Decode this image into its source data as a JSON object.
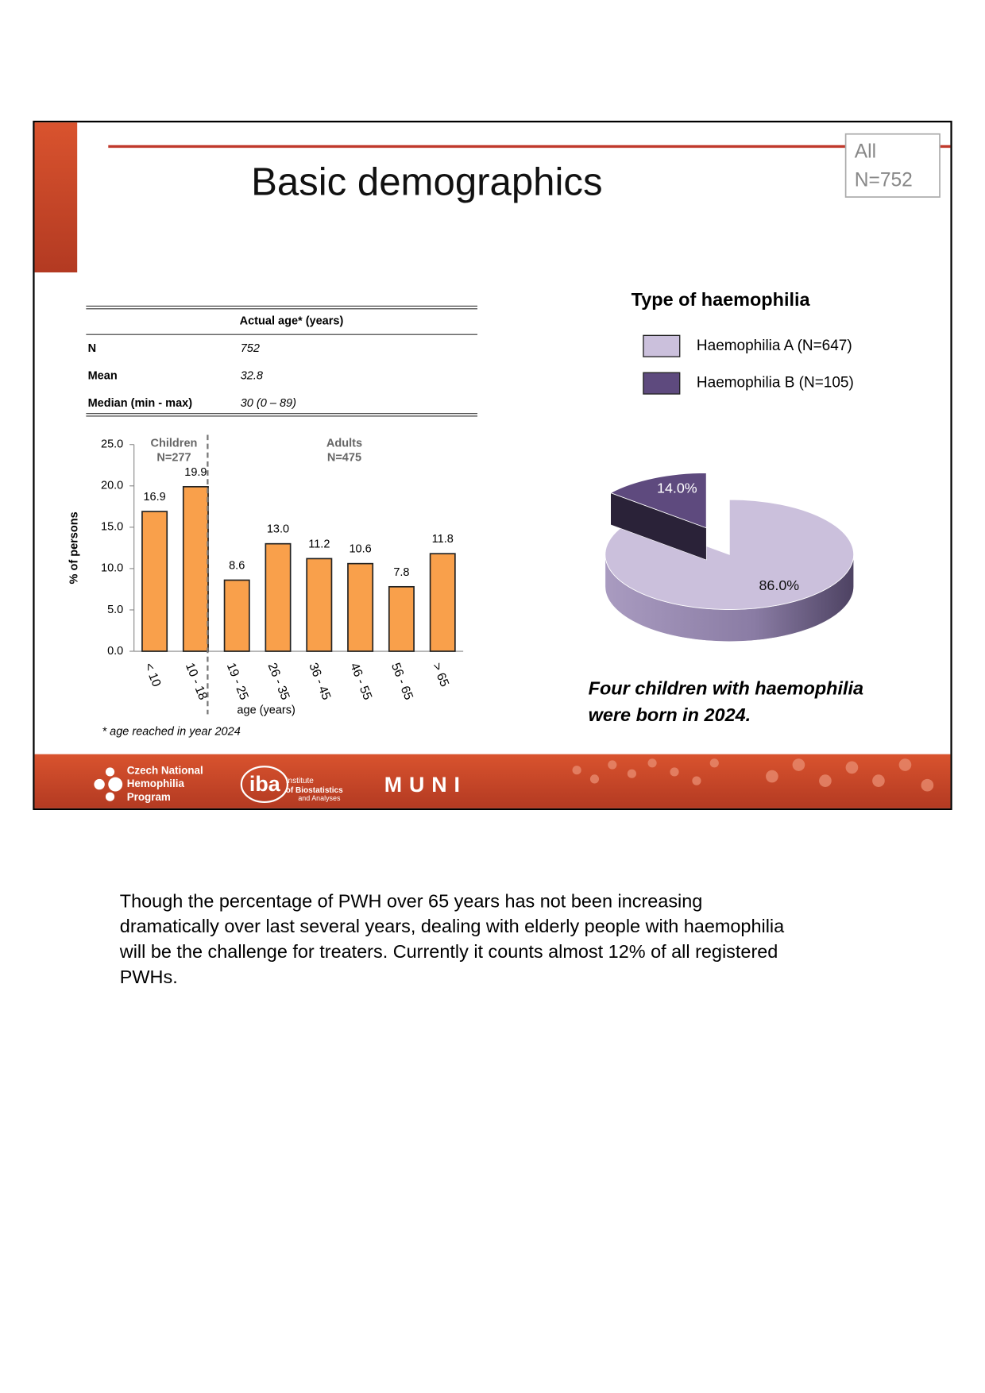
{
  "slide": {
    "title": "Basic demographics",
    "badge": [
      "All",
      "N=752"
    ],
    "table": {
      "header": "Actual age* (years)",
      "rows": [
        [
          "N",
          "752"
        ],
        [
          "Mean",
          "32.8"
        ],
        [
          "Median (min - max)",
          "30 (0 – 89)"
        ]
      ]
    },
    "footnote": "* age reached in year 2024",
    "note": [
      "Four children with haemophilia",
      "were born in 2024."
    ],
    "logos": {
      "cnhp": [
        "Czech National",
        "Hemophilia",
        "Program"
      ],
      "iba": [
        "iba",
        "Institute",
        "of Biostatistics",
        "and Analyses"
      ],
      "muni": "MUNI"
    }
  },
  "chart_data": [
    {
      "type": "bar",
      "ylabel": "% of persons",
      "xlabel": "age (years)",
      "groups": [
        [
          "Children",
          "N=277"
        ],
        [
          "Adults",
          "N=475"
        ]
      ],
      "categories": [
        "< 10",
        "10 - 18",
        "19 - 25",
        "26 - 35",
        "36 - 45",
        "46 - 55",
        "56 - 65",
        "> 65"
      ],
      "values": [
        16.9,
        19.9,
        8.6,
        13.0,
        11.2,
        10.6,
        7.8,
        11.8
      ],
      "value_labels": [
        "16.9",
        "19.9",
        "8.6",
        "13.0",
        "11.2",
        "10.6",
        "7.8",
        "11.8"
      ],
      "color": "#f9a04b",
      "ylim": [
        0,
        25
      ],
      "yticks": [
        {
          "value": 0,
          "label": "0.0"
        },
        {
          "value": 5,
          "label": "5.0"
        },
        {
          "value": 10,
          "label": "10.0"
        },
        {
          "value": 15,
          "label": "15.0"
        },
        {
          "value": 20,
          "label": "20.0"
        },
        {
          "value": 25,
          "label": "25.0"
        }
      ]
    },
    {
      "type": "pie",
      "title": "Type of haemophilia",
      "categories": [
        "Haemophilia A (N=647)",
        "Haemophilia B (N=105)"
      ],
      "values": [
        86.0,
        14.0
      ],
      "value_labels": [
        "86.0%",
        "14.0%"
      ],
      "colors": [
        "#cbc0dc",
        "#5e4a7e"
      ]
    }
  ],
  "paragraph": [
    "Though the percentage of PWH over 65 years has not been increasing",
    "dramatically over last several years, dealing with elderly people with haemophilia",
    "will be the challenge for treaters. Currently it counts almost 12% of all registered",
    "PWHs."
  ]
}
